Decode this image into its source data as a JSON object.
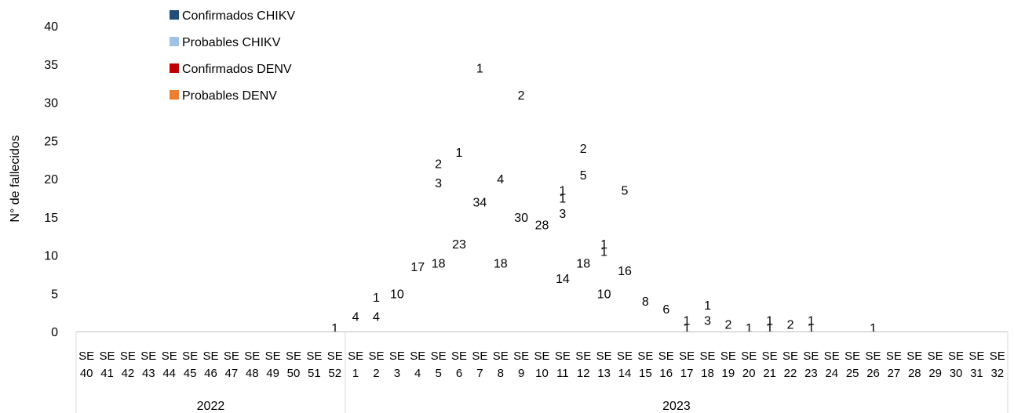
{
  "chart_data": {
    "type": "bar",
    "stacked": true,
    "ylabel": "N° de fallecidos",
    "ylim": [
      0,
      40
    ],
    "yticks": [
      0,
      5,
      10,
      15,
      20,
      25,
      30,
      35,
      40
    ],
    "categories": [
      "SE 40",
      "SE 41",
      "SE 42",
      "SE 43",
      "SE 44",
      "SE 45",
      "SE 46",
      "SE 47",
      "SE 48",
      "SE 49",
      "SE 50",
      "SE 51",
      "SE 52",
      "SE 1",
      "SE 2",
      "SE 3",
      "SE 4",
      "SE 5",
      "SE 6",
      "SE 7",
      "SE 8",
      "SE 9",
      "SE 10",
      "SE 11",
      "SE 12",
      "SE 13",
      "SE 14",
      "SE 15",
      "SE 16",
      "SE 17",
      "SE 18",
      "SE 19",
      "SE 20",
      "SE 21",
      "SE 22",
      "SE 23",
      "SE 24",
      "SE 25",
      "SE 26",
      "SE 27",
      "SE 28",
      "SE 29",
      "SE 30",
      "SE 31",
      "SE 32"
    ],
    "category_top": [
      "SE",
      "SE",
      "SE",
      "SE",
      "SE",
      "SE",
      "SE",
      "SE",
      "SE",
      "SE",
      "SE",
      "SE",
      "SE",
      "SE",
      "SE",
      "SE",
      "SE",
      "SE",
      "SE",
      "SE",
      "SE",
      "SE",
      "SE",
      "SE",
      "SE",
      "SE",
      "SE",
      "SE",
      "SE",
      "SE",
      "SE",
      "SE",
      "SE",
      "SE",
      "SE",
      "SE",
      "SE",
      "SE",
      "SE",
      "SE",
      "SE",
      "SE",
      "SE",
      "SE",
      "SE"
    ],
    "category_bottom": [
      "40",
      "41",
      "42",
      "43",
      "44",
      "45",
      "46",
      "47",
      "48",
      "49",
      "50",
      "51",
      "52",
      "1",
      "2",
      "3",
      "4",
      "5",
      "6",
      "7",
      "8",
      "9",
      "10",
      "11",
      "12",
      "13",
      "14",
      "15",
      "16",
      "17",
      "18",
      "19",
      "20",
      "21",
      "22",
      "23",
      "24",
      "25",
      "26",
      "27",
      "28",
      "29",
      "30",
      "31",
      "32"
    ],
    "groups": [
      {
        "label": "2022",
        "from": 0,
        "to": 12
      },
      {
        "label": "2023",
        "from": 13,
        "to": 44
      }
    ],
    "series": [
      {
        "name": "Confirmados CHIKV",
        "color": "#1F4E79",
        "values": [
          0,
          0,
          0,
          0,
          0,
          0,
          0,
          0,
          0,
          0,
          0,
          0,
          1,
          4,
          4,
          10,
          17,
          18,
          23,
          34,
          18,
          30,
          28,
          14,
          18,
          10,
          16,
          8,
          6,
          1,
          3,
          2,
          1,
          1,
          2,
          1,
          0,
          0,
          1,
          0,
          0,
          0,
          0,
          0,
          0
        ]
      },
      {
        "name": "Probables CHIKV",
        "color": "#9DC3E6",
        "values": [
          0,
          0,
          0,
          0,
          0,
          0,
          0,
          0,
          0,
          0,
          0,
          0,
          0,
          0,
          1,
          0,
          0,
          3,
          1,
          0,
          4,
          2,
          0,
          3,
          5,
          0,
          5,
          0,
          0,
          0,
          0,
          0,
          0,
          0,
          0,
          0,
          0,
          0,
          0,
          0,
          0,
          0,
          0,
          0,
          0
        ]
      },
      {
        "name": "Confirmados DENV",
        "color": "#C00000",
        "values": [
          0,
          0,
          0,
          0,
          0,
          0,
          0,
          0,
          0,
          0,
          0,
          0,
          0,
          0,
          0,
          0,
          0,
          2,
          0,
          0,
          0,
          0,
          0,
          1,
          2,
          1,
          0,
          0,
          0,
          1,
          1,
          0,
          0,
          1,
          0,
          1,
          0,
          0,
          0,
          0,
          0,
          0,
          0,
          0,
          0
        ]
      },
      {
        "name": "Probables DENV",
        "color": "#ED7D31",
        "values": [
          0,
          0,
          0,
          0,
          0,
          0,
          0,
          0,
          0,
          0,
          0,
          0,
          0,
          0,
          0,
          0,
          0,
          0,
          0,
          1,
          0,
          0,
          0,
          1,
          0,
          1,
          0,
          0,
          0,
          0,
          0,
          0,
          0,
          0,
          0,
          0,
          0,
          0,
          0,
          0,
          0,
          0,
          0,
          0,
          0
        ]
      }
    ],
    "legend_position": "top-left",
    "grid": false
  }
}
